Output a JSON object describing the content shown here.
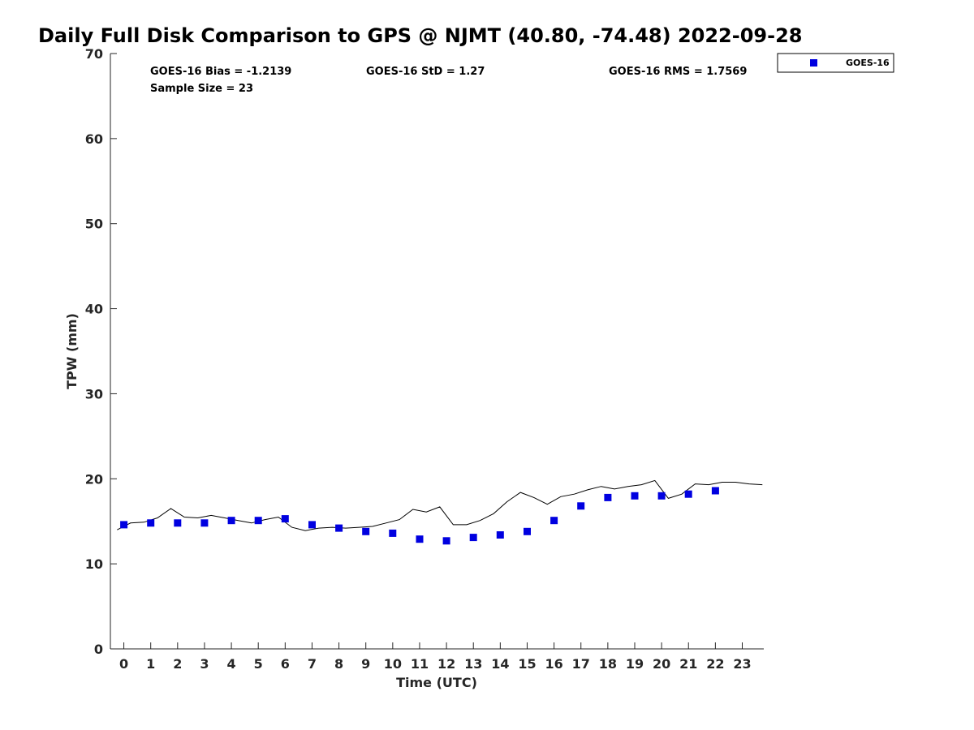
{
  "title": "Daily Full Disk Comparison to GPS @ NJMT (40.80, -74.48) 2022-09-28",
  "stats": {
    "bias": "GOES-16 Bias = -1.2139",
    "std": "GOES-16 StD = 1.27",
    "rms": "GOES-16 RMS = 1.7569",
    "sample": "Sample Size = 23"
  },
  "colors": {
    "satellite": "#0000e0",
    "gps_line": "#000000",
    "axis": "#262626"
  },
  "chart_data": {
    "type": "scatter",
    "xlabel": "Time (UTC)",
    "ylabel": "TPW (mm)",
    "xlim": [
      -0.5,
      23.8
    ],
    "ylim": [
      0,
      70
    ],
    "xticks": [
      "0",
      "1",
      "2",
      "3",
      "4",
      "5",
      "6",
      "7",
      "8",
      "9",
      "10",
      "11",
      "12",
      "13",
      "14",
      "15",
      "16",
      "17",
      "18",
      "19",
      "20",
      "21",
      "22",
      "23"
    ],
    "yticks": [
      "0",
      "10",
      "20",
      "30",
      "40",
      "50",
      "60",
      "70"
    ],
    "grid": false,
    "legend_position": "top-right",
    "series": [
      {
        "name": "GOES-16",
        "kind": "scatter",
        "x": [
          0,
          1,
          2,
          3,
          4,
          5,
          6,
          7,
          8,
          9,
          10,
          11,
          12,
          13,
          14,
          15,
          16,
          17,
          18,
          19,
          20,
          21,
          22
        ],
        "y": [
          14.6,
          14.8,
          14.8,
          14.8,
          15.1,
          15.1,
          15.3,
          14.6,
          14.2,
          13.8,
          13.6,
          12.9,
          12.7,
          13.1,
          13.4,
          13.8,
          15.1,
          16.8,
          17.8,
          18.0,
          18.0,
          18.2,
          18.6
        ]
      },
      {
        "kind": "line",
        "x": [
          -0.25,
          0.25,
          0.75,
          1.25,
          1.75,
          2.25,
          2.75,
          3.25,
          3.75,
          4.25,
          4.75,
          5.25,
          5.75,
          6.25,
          6.75,
          7.25,
          7.75,
          8.25,
          8.75,
          9.25,
          9.75,
          10.25,
          10.75,
          11.25,
          11.75,
          12.25,
          12.75,
          13.25,
          13.75,
          14.25,
          14.75,
          15.25,
          15.75,
          16.25,
          16.75,
          17.25,
          17.75,
          18.25,
          18.75,
          19.25,
          19.75,
          20.25,
          20.75,
          21.25,
          21.75,
          22.25,
          22.75,
          23.25,
          23.75
        ],
        "y": [
          14.0,
          14.8,
          14.9,
          15.4,
          16.5,
          15.5,
          15.4,
          15.7,
          15.4,
          15.1,
          14.8,
          15.2,
          15.5,
          14.3,
          13.9,
          14.2,
          14.3,
          14.2,
          14.3,
          14.4,
          14.8,
          15.2,
          16.4,
          16.1,
          16.7,
          14.6,
          14.6,
          15.1,
          15.9,
          17.3,
          18.4,
          17.8,
          17.0,
          17.9,
          18.2,
          18.7,
          19.1,
          18.8,
          19.1,
          19.3,
          19.8,
          17.7,
          18.2,
          19.4,
          19.3,
          19.6,
          19.6,
          19.4,
          19.3
        ]
      }
    ]
  }
}
